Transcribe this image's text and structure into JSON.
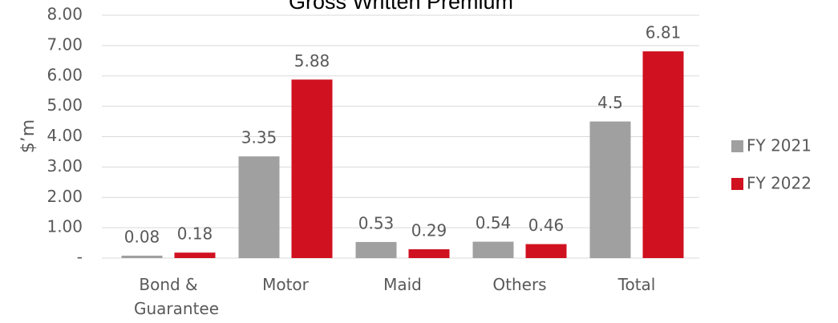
{
  "chart_data": {
    "type": "bar",
    "title": "Gross Written Premium",
    "y_label": "$’m",
    "categories": [
      "Bond & Guarantee",
      "Motor",
      "Maid",
      "Others",
      "Total"
    ],
    "series": [
      {
        "name": "FY 2021",
        "color": "#a0a0a0",
        "values": [
          0.08,
          3.35,
          0.53,
          0.54,
          4.5
        ]
      },
      {
        "name": "FY 2022",
        "color": "#d0111f",
        "values": [
          0.18,
          5.88,
          0.29,
          0.46,
          6.81
        ]
      }
    ],
    "ylim": [
      0,
      8
    ],
    "yticks": [
      {
        "value": 0,
        "label": "-"
      },
      {
        "value": 1,
        "label": "1.00"
      },
      {
        "value": 2,
        "label": "2.00"
      },
      {
        "value": 3,
        "label": "3.00"
      },
      {
        "value": 4,
        "label": "4.00"
      },
      {
        "value": 5,
        "label": "5.00"
      },
      {
        "value": 6,
        "label": "6.00"
      },
      {
        "value": 7,
        "label": "7.00"
      },
      {
        "value": 8,
        "label": "8.00"
      }
    ],
    "grid": true,
    "legend": "right"
  }
}
